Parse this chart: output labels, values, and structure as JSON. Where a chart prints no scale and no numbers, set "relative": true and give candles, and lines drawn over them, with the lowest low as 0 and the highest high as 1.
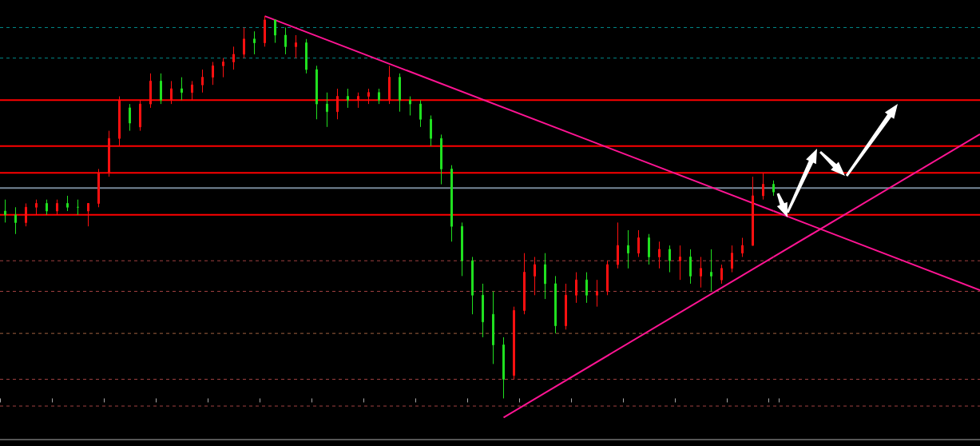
{
  "chart_data": {
    "type": "candlestick",
    "relative": true,
    "grid": false,
    "categories": [
      null,
      null,
      null,
      null,
      null,
      null,
      null,
      null,
      null,
      null,
      null,
      null,
      null,
      null,
      null,
      null,
      null,
      null,
      null,
      null,
      null,
      null,
      null,
      null,
      null,
      null,
      null,
      null,
      null,
      null,
      null,
      null,
      null,
      null,
      null,
      null,
      null,
      null,
      null,
      null,
      null,
      null,
      null,
      null,
      null,
      null,
      null,
      null,
      null,
      null,
      null,
      null,
      null,
      null,
      null,
      null,
      null,
      null,
      null,
      null,
      null,
      null,
      null,
      null,
      null,
      null,
      null,
      null,
      null,
      null,
      null,
      null,
      null,
      null,
      null
    ],
    "ohlc": [
      [
        0.49,
        0.52,
        0.46,
        0.48
      ],
      [
        0.48,
        0.5,
        0.43,
        0.46
      ],
      [
        0.46,
        0.51,
        0.45,
        0.5
      ],
      [
        0.5,
        0.52,
        0.48,
        0.51
      ],
      [
        0.51,
        0.52,
        0.48,
        0.49
      ],
      [
        0.49,
        0.52,
        0.48,
        0.51
      ],
      [
        0.51,
        0.53,
        0.49,
        0.5
      ],
      [
        0.5,
        0.52,
        0.48,
        0.5
      ],
      [
        0.49,
        0.51,
        0.45,
        0.51
      ],
      [
        0.51,
        0.6,
        0.5,
        0.59
      ],
      [
        0.59,
        0.7,
        0.58,
        0.68
      ],
      [
        0.68,
        0.79,
        0.66,
        0.78
      ],
      [
        0.76,
        0.77,
        0.7,
        0.72
      ],
      [
        0.71,
        0.78,
        0.7,
        0.77
      ],
      [
        0.77,
        0.85,
        0.76,
        0.83
      ],
      [
        0.83,
        0.85,
        0.77,
        0.78
      ],
      [
        0.78,
        0.83,
        0.77,
        0.81
      ],
      [
        0.81,
        0.84,
        0.78,
        0.8
      ],
      [
        0.8,
        0.83,
        0.78,
        0.82
      ],
      [
        0.82,
        0.86,
        0.8,
        0.84
      ],
      [
        0.84,
        0.88,
        0.82,
        0.87
      ],
      [
        0.87,
        0.89,
        0.84,
        0.88
      ],
      [
        0.88,
        0.92,
        0.86,
        0.9
      ],
      [
        0.9,
        0.97,
        0.89,
        0.94
      ],
      [
        0.94,
        0.96,
        0.9,
        0.93
      ],
      [
        0.93,
        1.0,
        0.92,
        0.99
      ],
      [
        0.99,
        0.99,
        0.93,
        0.95
      ],
      [
        0.95,
        0.97,
        0.9,
        0.92
      ],
      [
        0.92,
        0.95,
        0.89,
        0.93
      ],
      [
        0.93,
        0.94,
        0.85,
        0.86
      ],
      [
        0.86,
        0.87,
        0.73,
        0.77
      ],
      [
        0.77,
        0.8,
        0.71,
        0.75
      ],
      [
        0.75,
        0.81,
        0.73,
        0.79
      ],
      [
        0.79,
        0.81,
        0.76,
        0.78
      ],
      [
        0.78,
        0.8,
        0.76,
        0.79
      ],
      [
        0.79,
        0.81,
        0.77,
        0.8
      ],
      [
        0.8,
        0.81,
        0.77,
        0.78
      ],
      [
        0.78,
        0.87,
        0.77,
        0.84
      ],
      [
        0.84,
        0.85,
        0.75,
        0.78
      ],
      [
        0.78,
        0.79,
        0.74,
        0.77
      ],
      [
        0.77,
        0.78,
        0.71,
        0.73
      ],
      [
        0.73,
        0.74,
        0.66,
        0.68
      ],
      [
        0.68,
        0.69,
        0.56,
        0.6
      ],
      [
        0.6,
        0.61,
        0.41,
        0.45
      ],
      [
        0.45,
        0.46,
        0.32,
        0.36
      ],
      [
        0.36,
        0.37,
        0.22,
        0.27
      ],
      [
        0.27,
        0.3,
        0.16,
        0.2
      ],
      [
        0.22,
        0.28,
        0.09,
        0.14
      ],
      [
        0.14,
        0.16,
        0.0,
        0.05
      ],
      [
        0.06,
        0.24,
        0.05,
        0.23
      ],
      [
        0.23,
        0.38,
        0.22,
        0.33
      ],
      [
        0.32,
        0.37,
        0.27,
        0.35
      ],
      [
        0.35,
        0.38,
        0.26,
        0.3
      ],
      [
        0.3,
        0.32,
        0.17,
        0.19
      ],
      [
        0.19,
        0.3,
        0.18,
        0.27
      ],
      [
        0.27,
        0.33,
        0.25,
        0.31
      ],
      [
        0.31,
        0.33,
        0.25,
        0.27
      ],
      [
        0.27,
        0.31,
        0.24,
        0.28
      ],
      [
        0.28,
        0.36,
        0.27,
        0.35
      ],
      [
        0.35,
        0.46,
        0.34,
        0.4
      ],
      [
        0.4,
        0.44,
        0.34,
        0.38
      ],
      [
        0.38,
        0.44,
        0.37,
        0.42
      ],
      [
        0.42,
        0.43,
        0.35,
        0.37
      ],
      [
        0.37,
        0.41,
        0.34,
        0.39
      ],
      [
        0.39,
        0.4,
        0.33,
        0.36
      ],
      [
        0.36,
        0.4,
        0.31,
        0.37
      ],
      [
        0.37,
        0.39,
        0.3,
        0.32
      ],
      [
        0.32,
        0.37,
        0.29,
        0.34
      ],
      [
        0.33,
        0.39,
        0.28,
        0.32
      ],
      [
        0.31,
        0.35,
        0.3,
        0.34
      ],
      [
        0.34,
        0.4,
        0.33,
        0.38
      ],
      [
        0.38,
        0.42,
        0.37,
        0.4
      ],
      [
        0.4,
        0.58,
        0.4,
        0.53
      ],
      [
        0.53,
        0.59,
        0.52,
        0.56
      ],
      [
        0.56,
        0.57,
        0.53,
        0.54
      ]
    ],
    "colors": [
      "#20e020",
      "#20e020",
      "#ff1010",
      "#ff1010",
      "#20e020",
      "#ff1010",
      "#20e020",
      "#20e020",
      "#ff1010",
      "#ff1010",
      "#ff1010",
      "#ff1010",
      "#20e020",
      "#ff1010",
      "#ff1010",
      "#20e020",
      "#ff1010",
      "#20e020",
      "#ff1010",
      "#ff1010",
      "#ff1010",
      "#ff1010",
      "#ff1010",
      "#ff1010",
      "#20e020",
      "#ff1010",
      "#20e020",
      "#20e020",
      "#ff1010",
      "#20e020",
      "#20e020",
      "#20e020",
      "#ff1010",
      "#20e020",
      "#ff1010",
      "#ff1010",
      "#20e020",
      "#ff1010",
      "#20e020",
      "#20e020",
      "#20e020",
      "#20e020",
      "#20e020",
      "#20e020",
      "#20e020",
      "#20e020",
      "#20e020",
      "#20e020",
      "#20e020",
      "#ff1010",
      "#ff1010",
      "#ff1010",
      "#20e020",
      "#20e020",
      "#ff1010",
      "#ff1010",
      "#20e020",
      "#ff1010",
      "#ff1010",
      "#ff1010",
      "#20e020",
      "#ff1010",
      "#20e020",
      "#ff1010",
      "#20e020",
      "#ff1010",
      "#20e020",
      "#ff1010",
      "#20e020",
      "#ff1010",
      "#ff1010",
      "#ff1010",
      "#ff1010",
      "#ff1010",
      "#20e020"
    ],
    "series": [
      {
        "type": "line",
        "color": "#ff1493",
        "values": [
          null,
          null,
          null,
          null,
          null,
          null,
          null,
          null,
          null,
          null,
          null,
          null,
          null,
          null,
          null,
          null,
          null,
          null,
          null,
          null,
          null,
          null,
          null,
          null,
          null,
          1.0,
          null,
          null,
          null,
          null,
          null,
          null,
          null,
          null,
          null,
          null,
          null,
          null,
          null,
          null,
          null,
          null,
          null,
          null,
          null,
          null,
          null,
          null,
          null,
          null,
          null,
          null,
          null,
          null,
          null,
          null,
          null,
          null,
          null,
          null,
          null,
          null,
          null,
          null,
          null,
          null,
          null,
          null,
          null,
          null,
          null,
          null,
          null,
          null,
          0.49
        ]
      },
      {
        "type": "line",
        "color": "#ff1493",
        "values": [
          null,
          null,
          null,
          null,
          null,
          null,
          null,
          null,
          null,
          null,
          null,
          null,
          null,
          null,
          null,
          null,
          null,
          null,
          null,
          null,
          null,
          null,
          null,
          null,
          null,
          null,
          null,
          null,
          null,
          null,
          null,
          null,
          null,
          null,
          null,
          null,
          null,
          null,
          null,
          null,
          null,
          null,
          null,
          null,
          null,
          null,
          null,
          null,
          -0.05,
          null,
          null,
          null,
          null,
          null,
          null,
          null,
          null,
          null,
          null,
          null,
          null,
          null,
          null,
          null,
          null,
          null,
          null,
          null,
          null,
          null,
          null,
          null,
          null,
          null,
          0.37
        ]
      }
    ],
    "ref_lines": [
      {
        "axis": "y",
        "value": 0.97,
        "color": "#008b8b",
        "line_style": "dashed"
      },
      {
        "axis": "y",
        "value": 0.89,
        "color": "#008b8b",
        "line_style": "dashed"
      },
      {
        "axis": "y",
        "value": 0.78,
        "color": "#ff0000",
        "line_style": "solid"
      },
      {
        "axis": "y",
        "value": 0.66,
        "color": "#ff0000",
        "line_style": "solid"
      },
      {
        "axis": "y",
        "value": 0.59,
        "color": "#ff0000",
        "line_style": "solid"
      },
      {
        "axis": "y",
        "value": 0.55,
        "color": "#778899",
        "line_style": "solid"
      },
      {
        "axis": "y",
        "value": 0.48,
        "color": "#ff0000",
        "line_style": "solid"
      },
      {
        "axis": "y",
        "value": 0.36,
        "color": "#a04040",
        "line_style": "dashed"
      },
      {
        "axis": "y",
        "value": 0.28,
        "color": "#a04040",
        "line_style": "dashed"
      },
      {
        "axis": "y",
        "value": 0.17,
        "color": "#a06040",
        "line_style": "dashed"
      },
      {
        "axis": "y",
        "value": 0.05,
        "color": "#a04040",
        "line_style": "dashed"
      },
      {
        "axis": "y",
        "value": -0.02,
        "color": "#a04040",
        "line_style": "dashed"
      }
    ]
  }
}
